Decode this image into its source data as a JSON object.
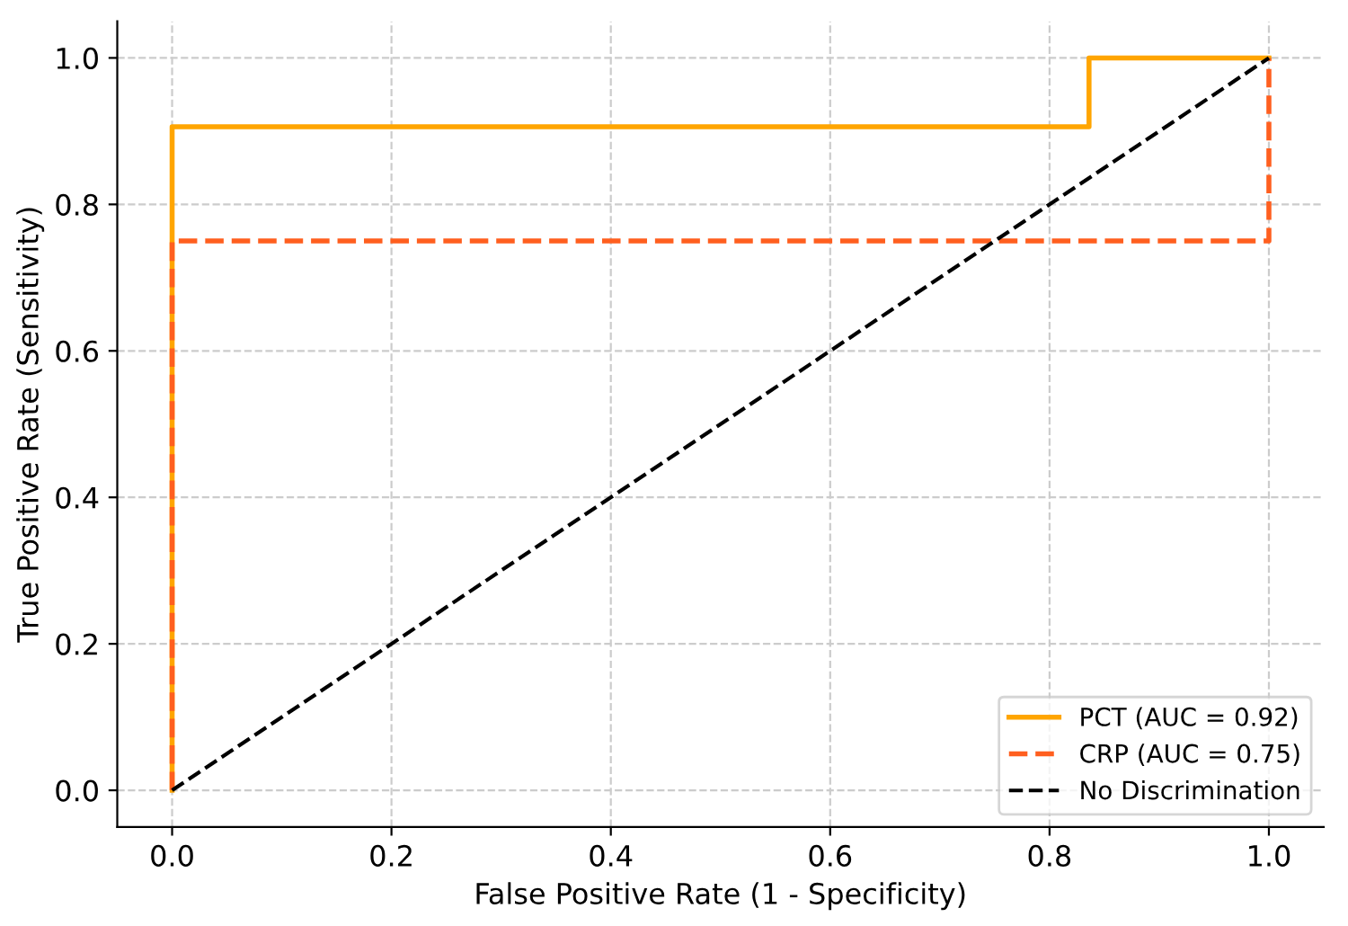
{
  "chart_data": {
    "type": "line",
    "xlabel": "False Positive Rate (1 - Specificity)",
    "ylabel": "True Positive Rate (Sensitivity)",
    "xlim": [
      -0.05,
      1.05
    ],
    "ylim": [
      -0.05,
      1.05
    ],
    "xticks": [
      {
        "value": 0,
        "label": "0.0"
      },
      {
        "value": 0.2,
        "label": "0.2"
      },
      {
        "value": 0.4,
        "label": "0.4"
      },
      {
        "value": 0.6,
        "label": "0.6"
      },
      {
        "value": 0.8,
        "label": "0.8"
      },
      {
        "value": 1,
        "label": "1.0"
      }
    ],
    "yticks": [
      {
        "value": 0,
        "label": "0.0"
      },
      {
        "value": 0.2,
        "label": "0.2"
      },
      {
        "value": 0.4,
        "label": "0.4"
      },
      {
        "value": 0.6,
        "label": "0.6"
      },
      {
        "value": 0.8,
        "label": "0.8"
      },
      {
        "value": 1,
        "label": "1.0"
      }
    ],
    "grid": true,
    "legend": "bottom right",
    "marker": "none",
    "series": [
      {
        "name": "PCT (AUC = 0.92)",
        "color": "#ffa500",
        "line_style": "solid",
        "x": [
          0,
          0,
          0.836,
          0.836,
          1
        ],
        "values": [
          0,
          0.906,
          0.906,
          1,
          1
        ]
      },
      {
        "name": "CRP (AUC = 0.75)",
        "color": "#ff5f1f",
        "line_style": "dashed",
        "x": [
          0,
          0,
          1,
          1
        ],
        "values": [
          0,
          0.75,
          0.75,
          1
        ]
      },
      {
        "name": "No Discrimination",
        "color": "#000000",
        "line_style": "dashed",
        "x": [
          0,
          1
        ],
        "values": [
          0,
          1
        ]
      }
    ]
  }
}
